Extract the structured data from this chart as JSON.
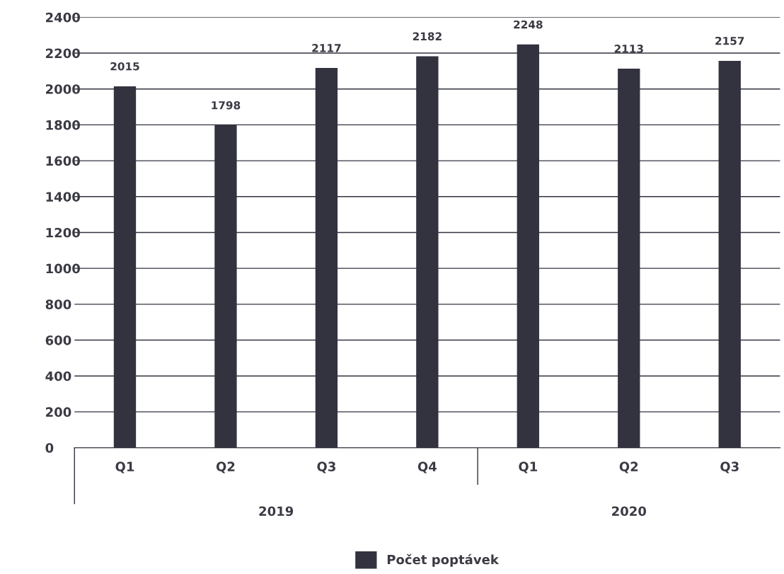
{
  "chart_data": {
    "type": "bar",
    "categories": [
      "Q1",
      "Q2",
      "Q3",
      "Q4",
      "Q1",
      "Q2",
      "Q3"
    ],
    "series": [
      {
        "name": "Počet poptávek",
        "color": "#33333f",
        "values": [
          2015,
          1798,
          2117,
          2182,
          2248,
          2113,
          2157
        ]
      }
    ],
    "ylim": [
      0,
      2400
    ],
    "yticks": [
      0,
      200,
      400,
      600,
      800,
      1000,
      1200,
      1400,
      1600,
      1800,
      2000,
      2200,
      2400
    ],
    "grid": "y",
    "legend": "bottom",
    "data_labels": true,
    "annotations": [
      "2019",
      "2020"
    ]
  }
}
